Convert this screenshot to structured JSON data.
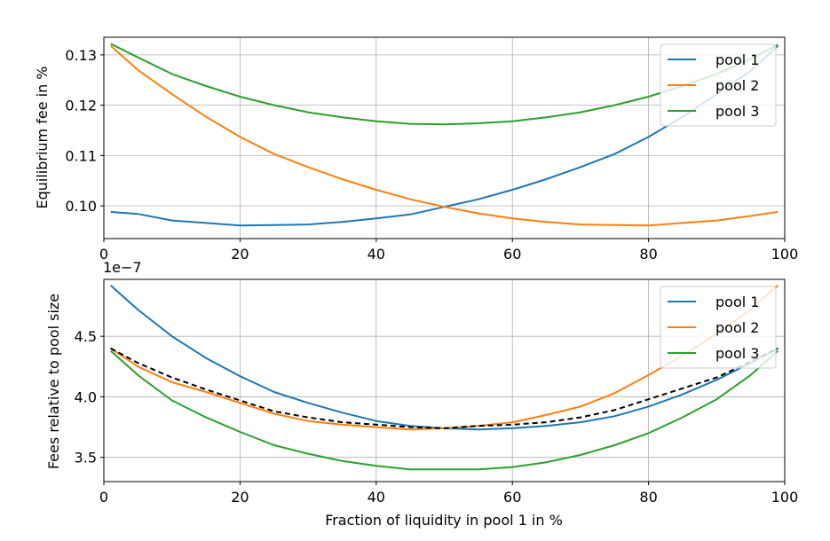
{
  "colors": {
    "pool1": "#1f77b4",
    "pool2": "#ff7f0e",
    "pool3": "#2ca02c",
    "mean": "#000000"
  },
  "chart_data": [
    {
      "type": "line",
      "title": "",
      "xlabel": "",
      "ylabel": "Equilibrium fee in %",
      "xlim": [
        0,
        100
      ],
      "ylim": [
        0.0935,
        0.1335
      ],
      "xticks": [
        0,
        20,
        40,
        60,
        80,
        100
      ],
      "xtick_labels": [
        "0",
        "20",
        "40",
        "60",
        "80",
        "100"
      ],
      "yticks": [
        0.1,
        0.11,
        0.12,
        0.13
      ],
      "ytick_labels": [
        "0.10",
        "0.11",
        "0.12",
        "0.13"
      ],
      "grid": true,
      "legend": "top-right",
      "legend_labels": [
        "pool 1",
        "pool 2",
        "pool 3"
      ],
      "x": [
        1,
        5,
        10,
        15,
        20,
        25,
        30,
        35,
        40,
        45,
        50,
        55,
        60,
        65,
        70,
        75,
        80,
        85,
        90,
        95,
        99
      ],
      "series": [
        {
          "name": "pool 1",
          "values": [
            0.0988,
            0.0984,
            0.0971,
            0.0966,
            0.0961,
            0.0962,
            0.0963,
            0.0968,
            0.0975,
            0.0983,
            0.0998,
            0.1013,
            0.1032,
            0.1053,
            0.1077,
            0.1103,
            0.1137,
            0.1177,
            0.1222,
            0.1268,
            0.1318
          ]
        },
        {
          "name": "pool 2",
          "values": [
            0.1318,
            0.127,
            0.1222,
            0.1177,
            0.1137,
            0.1103,
            0.1077,
            0.1053,
            0.1032,
            0.1013,
            0.0998,
            0.0985,
            0.0975,
            0.0968,
            0.0963,
            0.0962,
            0.0961,
            0.0966,
            0.0971,
            0.098,
            0.0988
          ]
        },
        {
          "name": "pool 3",
          "values": [
            0.1322,
            0.1295,
            0.1262,
            0.1238,
            0.1217,
            0.12,
            0.1186,
            0.1176,
            0.1168,
            0.1163,
            0.1162,
            0.1164,
            0.1168,
            0.1176,
            0.1186,
            0.12,
            0.1217,
            0.1238,
            0.1262,
            0.1292,
            0.132
          ]
        }
      ]
    },
    {
      "type": "line",
      "title": "",
      "xlabel": "Fraction of liquidity in pool 1 in %",
      "ylabel": "Fees relative to pool size",
      "scale_label": "1e−7",
      "xlim": [
        0,
        100
      ],
      "ylim": [
        3.3,
        4.97
      ],
      "xticks": [
        0,
        20,
        40,
        60,
        80,
        100
      ],
      "xtick_labels": [
        "0",
        "20",
        "40",
        "60",
        "80",
        "100"
      ],
      "yticks": [
        3.5,
        4.0,
        4.5
      ],
      "ytick_labels": [
        "3.5",
        "4.0",
        "4.5"
      ],
      "grid": true,
      "legend": "top-right",
      "legend_labels": [
        "pool 1",
        "pool 2",
        "pool 3"
      ],
      "x": [
        1,
        5,
        10,
        15,
        20,
        25,
        30,
        35,
        40,
        45,
        50,
        55,
        60,
        65,
        70,
        75,
        80,
        85,
        90,
        95,
        99
      ],
      "series": [
        {
          "name": "pool 1",
          "values": [
            4.92,
            4.72,
            4.5,
            4.32,
            4.17,
            4.04,
            3.95,
            3.87,
            3.8,
            3.76,
            3.74,
            3.73,
            3.74,
            3.76,
            3.79,
            3.84,
            3.92,
            4.02,
            4.14,
            4.28,
            4.4
          ]
        },
        {
          "name": "pool 2",
          "values": [
            4.4,
            4.25,
            4.12,
            4.04,
            3.95,
            3.86,
            3.8,
            3.77,
            3.75,
            3.73,
            3.74,
            3.76,
            3.79,
            3.85,
            3.92,
            4.03,
            4.18,
            4.34,
            4.52,
            4.72,
            4.92
          ]
        },
        {
          "name": "pool 3",
          "values": [
            4.38,
            4.18,
            3.97,
            3.83,
            3.71,
            3.6,
            3.53,
            3.47,
            3.43,
            3.4,
            3.4,
            3.4,
            3.42,
            3.46,
            3.52,
            3.6,
            3.7,
            3.83,
            3.98,
            4.18,
            4.38
          ]
        },
        {
          "name": "mean",
          "style": "dashed",
          "values": [
            4.4,
            4.28,
            4.16,
            4.06,
            3.97,
            3.88,
            3.83,
            3.79,
            3.77,
            3.75,
            3.74,
            3.76,
            3.77,
            3.79,
            3.83,
            3.89,
            3.98,
            4.07,
            4.16,
            4.29,
            4.4
          ]
        }
      ]
    }
  ]
}
